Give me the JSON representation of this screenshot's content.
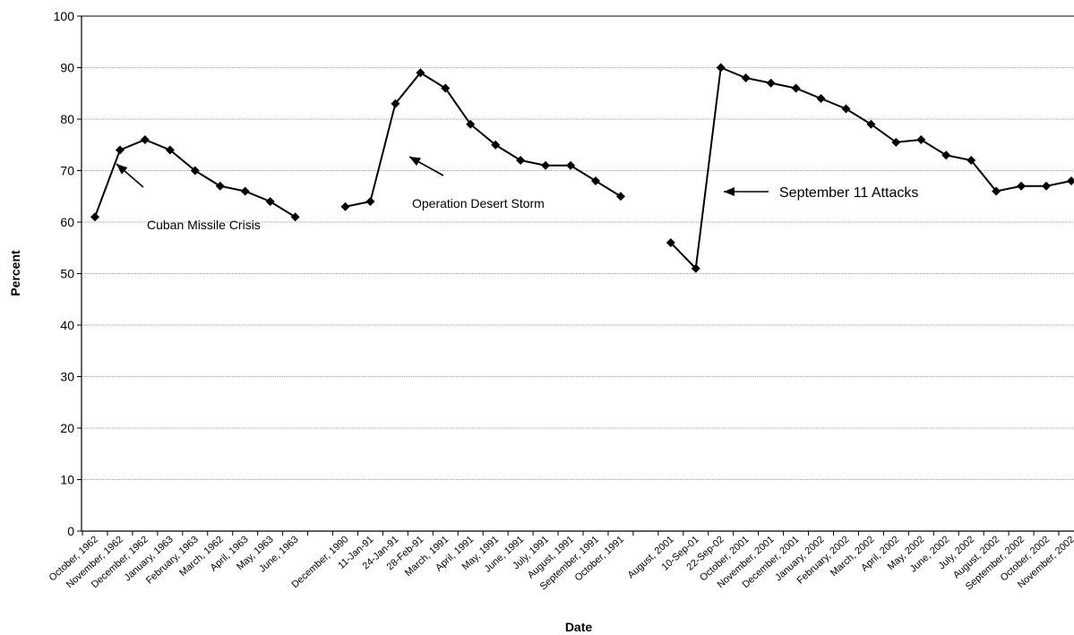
{
  "chart_data": {
    "type": "line",
    "xlabel": "Date",
    "ylabel": "Percent",
    "ylim": [
      0,
      100
    ],
    "yticks": [
      "0",
      "10",
      "20",
      "30",
      "40",
      "50",
      "60",
      "70",
      "80",
      "90",
      "100"
    ],
    "grid": true,
    "legend": "none",
    "marker": "diamond",
    "line_color": "#000000",
    "categories": [
      "October, 1962",
      "November, 1962",
      "December, 1962",
      "January, 1963",
      "February, 1963",
      "March, 1962",
      "April, 1963",
      "May, 1963",
      "June, 1963",
      "",
      "December, 1990",
      "11-Jan-91",
      "24-Jan-91",
      "28-Feb-91",
      "March, 1991",
      "April, 1991",
      "May, 1991",
      "June, 1991",
      "July, 1991",
      "August, 1991",
      "September, 1991",
      "October, 1991",
      "",
      "August, 2001",
      "10-Sep-01",
      "22-Sep-02",
      "October, 2001",
      "November, 2001",
      "December, 2001",
      "January, 2002",
      "February, 2002",
      "March, 2002",
      "April, 2002",
      "May, 2002",
      "June, 2002",
      "July, 2002",
      "August, 2002",
      "September, 2002",
      "October, 2002",
      "November, 2002"
    ],
    "values": [
      61,
      74,
      76,
      74,
      70,
      67,
      66,
      64,
      61,
      null,
      63,
      64,
      83,
      89,
      86,
      79,
      75,
      72,
      71,
      71,
      68,
      65,
      null,
      56,
      51,
      90,
      88,
      87,
      86,
      84,
      82,
      79,
      75.5,
      76,
      73,
      72,
      66,
      67,
      67,
      68
    ],
    "annotations": [
      {
        "text": "Cuban Missile Crisis",
        "arrow_to_index": 1
      },
      {
        "text": "Operation Desert Storm",
        "arrow_to_index": 13
      },
      {
        "text": "September 11 Attacks",
        "arrow_to_index": 25
      }
    ]
  }
}
